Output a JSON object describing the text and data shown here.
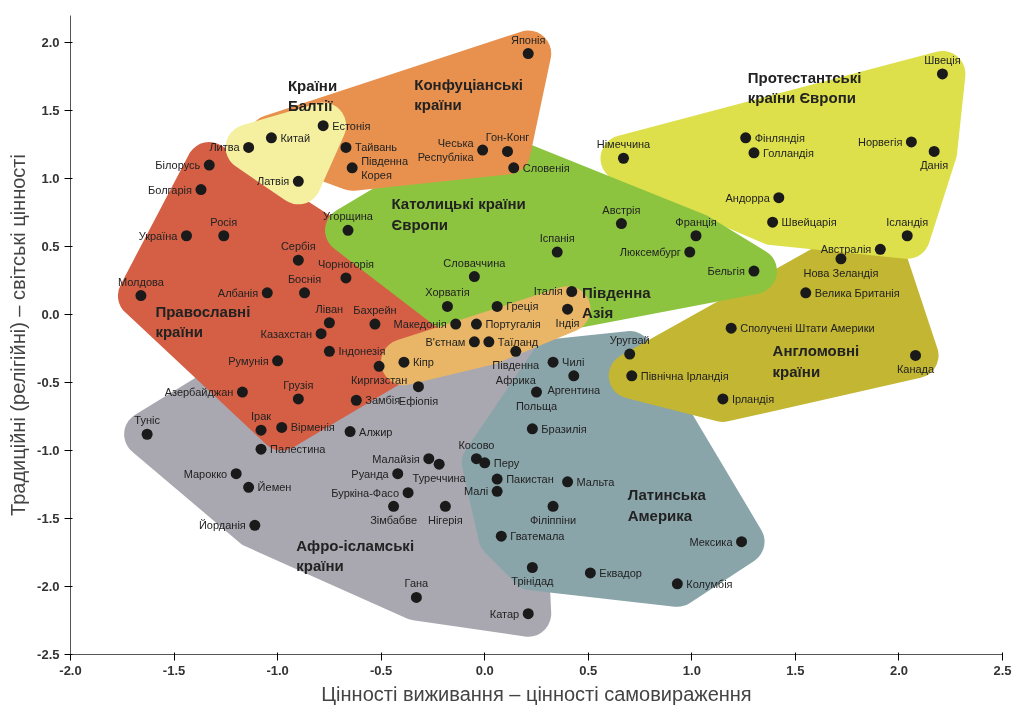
{
  "chart_data": {
    "type": "scatter",
    "xlabel": "Цінності виживання – цінності самовираження",
    "ylabel": "Традиційні (релігійні) – світські цінності",
    "xlim": [
      -2.0,
      2.5
    ],
    "ylim": [
      -2.5,
      2.2
    ],
    "xticks": [
      {
        "value": -2,
        "label": "-2.0"
      },
      -1.5,
      {
        "value": -1,
        "label": "-1.0"
      },
      -0.5,
      {
        "value": 0,
        "label": "0.0"
      },
      0.5,
      {
        "value": 1,
        "label": "1.0"
      },
      1.5,
      {
        "value": 2,
        "label": "2.0"
      },
      2.5
    ],
    "yticks": [
      -2.5,
      {
        "value": -2,
        "label": "-2.0"
      },
      -1.5,
      {
        "value": -1,
        "label": "-1.0"
      },
      -0.5,
      {
        "value": 0,
        "label": "0.0"
      },
      0.5,
      {
        "value": 1,
        "label": "1.0"
      },
      1.5,
      {
        "value": 2,
        "label": "2.0"
      }
    ],
    "grid": false,
    "marker": "circle",
    "series": [
      {
        "name": "Афро-ісламські\nкраїни",
        "color": "#1a1a1a",
        "x": [
          -1.17,
          -1.63,
          -1.08,
          -1.08,
          -1.2,
          -1.14,
          -1.11,
          -0.75,
          -0.53,
          -0.79,
          -0.75,
          -0.51,
          -0.62,
          -0.32,
          -0.65,
          0.15,
          -0.27,
          -0.22,
          -0.04,
          0.06,
          0.06,
          -0.42,
          -0.37,
          -0.44,
          -0.19,
          -0.33,
          0.21
        ],
        "values": [
          -0.57,
          -0.88,
          -0.85,
          -0.99,
          -1.17,
          -1.27,
          -1.55,
          -0.06,
          -0.07,
          -0.14,
          -0.27,
          -0.38,
          -0.63,
          -0.53,
          -0.86,
          -0.27,
          -1.06,
          -1.1,
          -1.06,
          -1.21,
          -1.3,
          -1.17,
          -1.31,
          -1.41,
          -1.41,
          -2.08,
          -2.2
        ]
      },
      {
        "name": "Латинська\nАмерика",
        "color": "#1a1a1a",
        "x": [
          0.33,
          0.43,
          0.25,
          0.23,
          0.4,
          0.33,
          0.08,
          0.23,
          0.51,
          0.93,
          1.24,
          0.7,
          0.0
        ],
        "values": [
          -0.35,
          -0.45,
          -0.57,
          -0.84,
          -1.23,
          -1.41,
          -1.63,
          -1.86,
          -1.9,
          -1.98,
          -1.67,
          -0.29,
          -1.09
        ]
      },
      {
        "name": "Англомовні\nкраїни",
        "color": "#1a1a1a",
        "x": [
          1.91,
          1.72,
          1.55,
          1.19,
          0.71,
          1.15,
          2.08
        ],
        "values": [
          0.48,
          0.41,
          0.16,
          -0.1,
          -0.45,
          -0.62,
          -0.3
        ]
      },
      {
        "name": "Православні\nкраїни",
        "color": "#1a1a1a",
        "x": [
          -1.33,
          -1.37,
          -1.44,
          -1.26,
          -1.66,
          -0.9,
          -1.05,
          -0.87,
          -0.67,
          -0.14,
          -1.0,
          -0.9,
          -0.98
        ],
        "values": [
          1.1,
          0.92,
          0.58,
          0.58,
          0.14,
          0.4,
          0.16,
          0.16,
          0.27,
          -0.07,
          -0.34,
          -0.62,
          -0.83
        ]
      },
      {
        "name": "Протестантські\nкраїни Європи",
        "color": "#1a1a1a",
        "x": [
          2.21,
          1.26,
          1.3,
          0.67,
          2.06,
          2.17,
          2.04,
          1.42,
          1.39
        ],
        "values": [
          1.77,
          1.3,
          1.19,
          1.15,
          1.27,
          1.2,
          0.58,
          0.86,
          0.68
        ]
      },
      {
        "name": "Католицькі країни\nЄвропи",
        "color": "#1a1a1a",
        "x": [
          -0.01,
          0.14,
          -0.66,
          0.66,
          0.35,
          1.02,
          0.99,
          1.3,
          -0.05,
          -0.18,
          0.42,
          0.06,
          -0.04
        ],
        "values": [
          1.21,
          1.08,
          0.62,
          0.67,
          0.46,
          0.58,
          0.46,
          0.32,
          0.28,
          0.06,
          0.17,
          0.06,
          -0.07
        ]
      },
      {
        "name": "Конфуціанські\nкраїни",
        "color": "#1a1a1a",
        "x": [
          0.21,
          -1.03,
          -0.67,
          -0.64,
          0.11
        ],
        "values": [
          1.92,
          1.3,
          1.23,
          1.08,
          1.2
        ]
      },
      {
        "name": "Країни\nБалтії",
        "color": "#1a1a1a",
        "x": [
          -0.78,
          -1.14,
          -0.9
        ],
        "values": [
          1.39,
          1.23,
          0.98
        ]
      },
      {
        "name": "Південна\nАзія",
        "color": "#1a1a1a",
        "x": [
          -0.05,
          0.02,
          0.4,
          -0.39
        ],
        "values": [
          -0.2,
          -0.2,
          0.04,
          -0.35
        ]
      }
    ],
    "annotations": [
      {
        "text": "Азербайджан",
        "x": -1.17,
        "y": -0.57
      },
      {
        "text": "Туніс",
        "x": -1.63,
        "y": -0.88
      },
      {
        "text": "Ірак",
        "x": -1.08,
        "y": -0.85
      },
      {
        "text": "Палестина",
        "x": -1.08,
        "y": -0.99
      },
      {
        "text": "Марокко",
        "x": -1.2,
        "y": -1.17
      },
      {
        "text": "Йемен",
        "x": -1.14,
        "y": -1.27
      },
      {
        "text": "Йорданія",
        "x": -1.11,
        "y": -1.55
      },
      {
        "text": "Ліван",
        "x": -0.75,
        "y": -0.06
      },
      {
        "text": "Бахрейн",
        "x": -0.53,
        "y": -0.07
      },
      {
        "text": "Казахстан",
        "x": -0.79,
        "y": -0.14
      },
      {
        "text": "Індонезія",
        "x": -0.75,
        "y": -0.27
      },
      {
        "text": "Киргизстан",
        "x": -0.51,
        "y": -0.38
      },
      {
        "text": "Замбія",
        "x": -0.62,
        "y": -0.63
      },
      {
        "text": "Ефіопія",
        "x": -0.32,
        "y": -0.53
      },
      {
        "text": "Алжир",
        "x": -0.65,
        "y": -0.86
      },
      {
        "text": "Південна\nАфрика",
        "x": 0.15,
        "y": -0.27
      },
      {
        "text": "Малайзія",
        "x": -0.27,
        "y": -1.06
      },
      {
        "text": "Туреччина",
        "x": -0.22,
        "y": -1.1
      },
      {
        "text": "Косово",
        "x": -0.04,
        "y": -1.06
      },
      {
        "text": "Пакистан",
        "x": 0.06,
        "y": -1.21
      },
      {
        "text": "Малі",
        "x": 0.06,
        "y": -1.3
      },
      {
        "text": "Руанда",
        "x": -0.42,
        "y": -1.17
      },
      {
        "text": "Буркіна-Фасо",
        "x": -0.37,
        "y": -1.31
      },
      {
        "text": "Зімбабве",
        "x": -0.44,
        "y": -1.41
      },
      {
        "text": "Нігерія",
        "x": -0.19,
        "y": -1.41
      },
      {
        "text": "Гана",
        "x": -0.33,
        "y": -2.08
      },
      {
        "text": "Катар",
        "x": 0.21,
        "y": -2.2
      },
      {
        "text": "Чилі",
        "x": 0.33,
        "y": -0.35
      },
      {
        "text": "Аргентина",
        "x": 0.43,
        "y": -0.45
      },
      {
        "text": "Польща",
        "x": 0.25,
        "y": -0.57
      },
      {
        "text": "Бразилія",
        "x": 0.23,
        "y": -0.84
      },
      {
        "text": "Мальта",
        "x": 0.4,
        "y": -1.23
      },
      {
        "text": "Філіппіни",
        "x": 0.33,
        "y": -1.41
      },
      {
        "text": "Гватемала",
        "x": 0.08,
        "y": -1.63
      },
      {
        "text": "Трінідад",
        "x": 0.23,
        "y": -1.86
      },
      {
        "text": "Еквадор",
        "x": 0.51,
        "y": -1.9
      },
      {
        "text": "Колумбія",
        "x": 0.93,
        "y": -1.98
      },
      {
        "text": "Мексика",
        "x": 1.24,
        "y": -1.67
      },
      {
        "text": "Уругвай",
        "x": 0.7,
        "y": -0.29
      },
      {
        "text": "Перу",
        "x": 0.0,
        "y": -1.09
      },
      {
        "text": "Австралія",
        "x": 1.91,
        "y": 0.48
      },
      {
        "text": "Нова Зеландія",
        "x": 1.72,
        "y": 0.41
      },
      {
        "text": "Велика Британія",
        "x": 1.55,
        "y": 0.16
      },
      {
        "text": "Сполучені Штати Америки",
        "x": 1.19,
        "y": -0.1
      },
      {
        "text": "Північна Ірландія",
        "x": 0.71,
        "y": -0.45
      },
      {
        "text": "Ірландія",
        "x": 1.15,
        "y": -0.62
      },
      {
        "text": "Канада",
        "x": 2.08,
        "y": -0.3
      },
      {
        "text": "Білорусь",
        "x": -1.33,
        "y": 1.1
      },
      {
        "text": "Болгарія",
        "x": -1.37,
        "y": 0.92
      },
      {
        "text": "Україна",
        "x": -1.44,
        "y": 0.58
      },
      {
        "text": "Росія",
        "x": -1.26,
        "y": 0.58
      },
      {
        "text": "Молдова",
        "x": -1.66,
        "y": 0.14
      },
      {
        "text": "Сербія",
        "x": -0.9,
        "y": 0.4
      },
      {
        "text": "Албанія",
        "x": -1.05,
        "y": 0.16
      },
      {
        "text": "Боснія",
        "x": -0.87,
        "y": 0.16
      },
      {
        "text": "Чорногорія",
        "x": -0.67,
        "y": 0.27
      },
      {
        "text": "Македонія",
        "x": -0.14,
        "y": -0.07
      },
      {
        "text": "Румунія",
        "x": -1.0,
        "y": -0.34
      },
      {
        "text": "Грузія",
        "x": -0.9,
        "y": -0.62
      },
      {
        "text": "Вірменія",
        "x": -0.98,
        "y": -0.83
      },
      {
        "text": "Швеція",
        "x": 2.21,
        "y": 1.77
      },
      {
        "text": "Фінляндія",
        "x": 1.26,
        "y": 1.3
      },
      {
        "text": "Голландія",
        "x": 1.3,
        "y": 1.19
      },
      {
        "text": "Німеччина",
        "x": 0.67,
        "y": 1.15
      },
      {
        "text": "Норвегія",
        "x": 2.06,
        "y": 1.27
      },
      {
        "text": "Данія",
        "x": 2.17,
        "y": 1.2
      },
      {
        "text": "Ісландія",
        "x": 2.04,
        "y": 0.58
      },
      {
        "text": "Андорра",
        "x": 1.42,
        "y": 0.86
      },
      {
        "text": "Швейцарія",
        "x": 1.39,
        "y": 0.68
      },
      {
        "text": "Чеська\nРеспубліка",
        "x": -0.01,
        "y": 1.21
      },
      {
        "text": "Словенія",
        "x": 0.14,
        "y": 1.08
      },
      {
        "text": "Угорщина",
        "x": -0.66,
        "y": 0.62
      },
      {
        "text": "Австрія",
        "x": 0.66,
        "y": 0.67
      },
      {
        "text": "Іспанія",
        "x": 0.35,
        "y": 0.46
      },
      {
        "text": "Франція",
        "x": 1.02,
        "y": 0.58
      },
      {
        "text": "Люксембург",
        "x": 0.99,
        "y": 0.46
      },
      {
        "text": "Бельгія",
        "x": 1.3,
        "y": 0.32
      },
      {
        "text": "Словаччина",
        "x": -0.05,
        "y": 0.28
      },
      {
        "text": "Хорватія",
        "x": -0.18,
        "y": 0.06
      },
      {
        "text": "Італія",
        "x": 0.42,
        "y": 0.17
      },
      {
        "text": "Греція",
        "x": 0.06,
        "y": 0.06
      },
      {
        "text": "Португалія",
        "x": -0.04,
        "y": -0.07
      },
      {
        "text": "Японія",
        "x": 0.21,
        "y": 1.92
      },
      {
        "text": "Китай",
        "x": -1.03,
        "y": 1.3
      },
      {
        "text": "Тайвань",
        "x": -0.67,
        "y": 1.23
      },
      {
        "text": "Південна\nКорея",
        "x": -0.64,
        "y": 1.08
      },
      {
        "text": "Гон-Конг",
        "x": 0.11,
        "y": 1.2
      },
      {
        "text": "Естонія",
        "x": -0.78,
        "y": 1.39
      },
      {
        "text": "Литва",
        "x": -1.14,
        "y": 1.23
      },
      {
        "text": "Латвія",
        "x": -0.9,
        "y": 0.98
      },
      {
        "text": "В'єтнам",
        "x": -0.05,
        "y": -0.2
      },
      {
        "text": "Таїланд",
        "x": 0.02,
        "y": -0.2
      },
      {
        "text": "Індія",
        "x": 0.4,
        "y": 0.04
      },
      {
        "text": "Кіпр",
        "x": -0.39,
        "y": -0.35
      }
    ]
  }
}
